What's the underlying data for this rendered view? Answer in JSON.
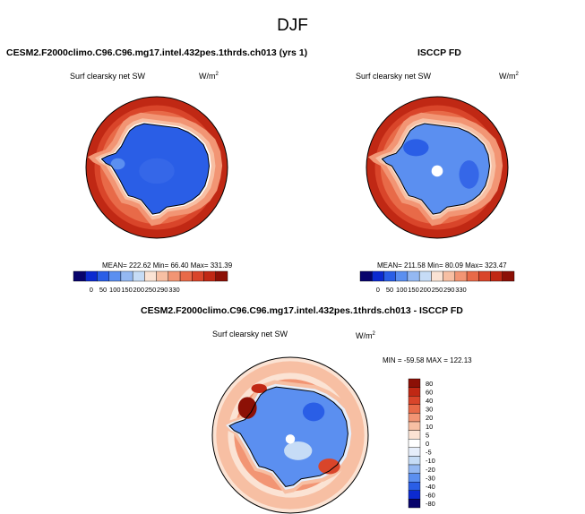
{
  "figure": {
    "title": "DJF",
    "colors": {
      "coast": "#000000",
      "background": "#ffffff"
    }
  },
  "panels": [
    {
      "title": "CESM2.F2000climo.C96.C96.mg17.intel.432pes.1thrds.ch013 (yrs 1)",
      "variable": "Surf clearsky net SW",
      "units": "W/m",
      "units_sup": "2",
      "stats": "MEAN= 222.62  Min=  66.40  Max= 331.39"
    },
    {
      "title": "ISCCP FD",
      "variable": "Surf clearsky net SW",
      "units": "W/m",
      "units_sup": "2",
      "stats": "MEAN= 211.58  Min=  80.09  Max= 323.47"
    },
    {
      "title": "CESM2.F2000climo.C96.C96.mg17.intel.432pes.1thrds.ch013 - ISCCP FD",
      "variable": "Surf clearsky net SW",
      "units": "W/m",
      "units_sup": "2",
      "stats": "MIN = -59.58 MAX = 122.13"
    }
  ],
  "chart_data": [
    {
      "type": "heatmap",
      "projection": "polar-stereographic-south",
      "legend": "bottom-horizontal",
      "colorbar_ticks": [
        "0",
        "50",
        "100",
        "150",
        "200",
        "250",
        "290",
        "330"
      ],
      "colorbar_colors": [
        "#08046c",
        "#0c2ad0",
        "#2a5ee6",
        "#5b8ff0",
        "#94b8f2",
        "#c6dcf6",
        "#fbe3d4",
        "#f7bfa3",
        "#f29574",
        "#e86a48",
        "#d9452a",
        "#c02814",
        "#8c1006"
      ],
      "stats": {
        "mean": 222.62,
        "min": 66.4,
        "max": 331.39
      }
    },
    {
      "type": "heatmap",
      "projection": "polar-stereographic-south",
      "legend": "bottom-horizontal",
      "colorbar_ticks": [
        "0",
        "50",
        "100",
        "150",
        "200",
        "250",
        "290",
        "330"
      ],
      "colorbar_colors": [
        "#08046c",
        "#0c2ad0",
        "#2a5ee6",
        "#5b8ff0",
        "#94b8f2",
        "#c6dcf6",
        "#fbe3d4",
        "#f7bfa3",
        "#f29574",
        "#e86a48",
        "#d9452a",
        "#c02814",
        "#8c1006"
      ],
      "stats": {
        "mean": 211.58,
        "min": 80.09,
        "max": 323.47
      }
    },
    {
      "type": "heatmap",
      "projection": "polar-stereographic-south",
      "legend": "right-vertical",
      "colorbar_ticks": [
        "80",
        "60",
        "40",
        "30",
        "20",
        "10",
        "5",
        "0",
        "-5",
        "-10",
        "-20",
        "-30",
        "-40",
        "-60",
        "-80"
      ],
      "colorbar_colors": [
        "#8c1006",
        "#c02814",
        "#d9452a",
        "#e86a48",
        "#f29574",
        "#f7bfa3",
        "#fbe3d4",
        "#ffffff",
        "#e6eefb",
        "#c6dcf6",
        "#94b8f2",
        "#5b8ff0",
        "#2a5ee6",
        "#0c2ad0",
        "#08046c"
      ],
      "stats": {
        "min": -59.58,
        "max": 122.13
      }
    }
  ]
}
